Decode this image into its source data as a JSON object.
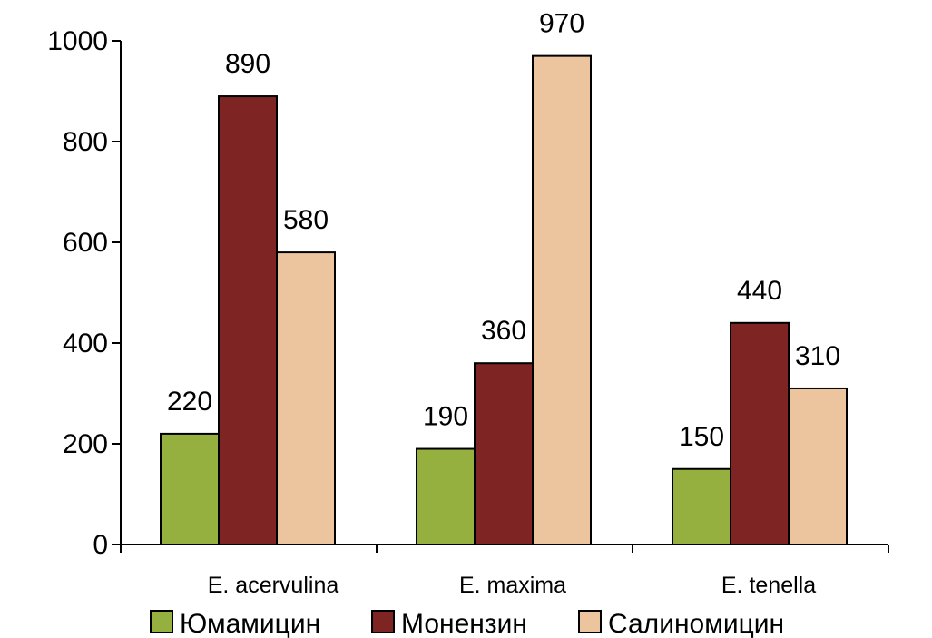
{
  "chart_data": {
    "type": "bar",
    "title": "",
    "xlabel": "",
    "ylabel": "",
    "ylim": [
      0,
      1000
    ],
    "yticks": [
      0,
      200,
      400,
      600,
      800,
      1000
    ],
    "ytick_labels": [
      "0",
      "200",
      "400",
      "600",
      "800",
      "1000"
    ],
    "categories": [
      "E. acervulina",
      "E. maxima",
      "E. tenella"
    ],
    "series": [
      {
        "name": "Юмамицин",
        "color": "#96b040",
        "values": [
          220,
          190,
          150
        ]
      },
      {
        "name": "Монензин",
        "color": "#7e2422",
        "values": [
          890,
          360,
          440
        ]
      },
      {
        "name": "Салиномицин",
        "color": "#ecc59f",
        "values": [
          580,
          970,
          310
        ]
      }
    ],
    "data_labels": [
      "220",
      "890",
      "580",
      "190",
      "360",
      "970",
      "150",
      "440",
      "310"
    ],
    "grid": false,
    "legend_position": "bottom"
  }
}
